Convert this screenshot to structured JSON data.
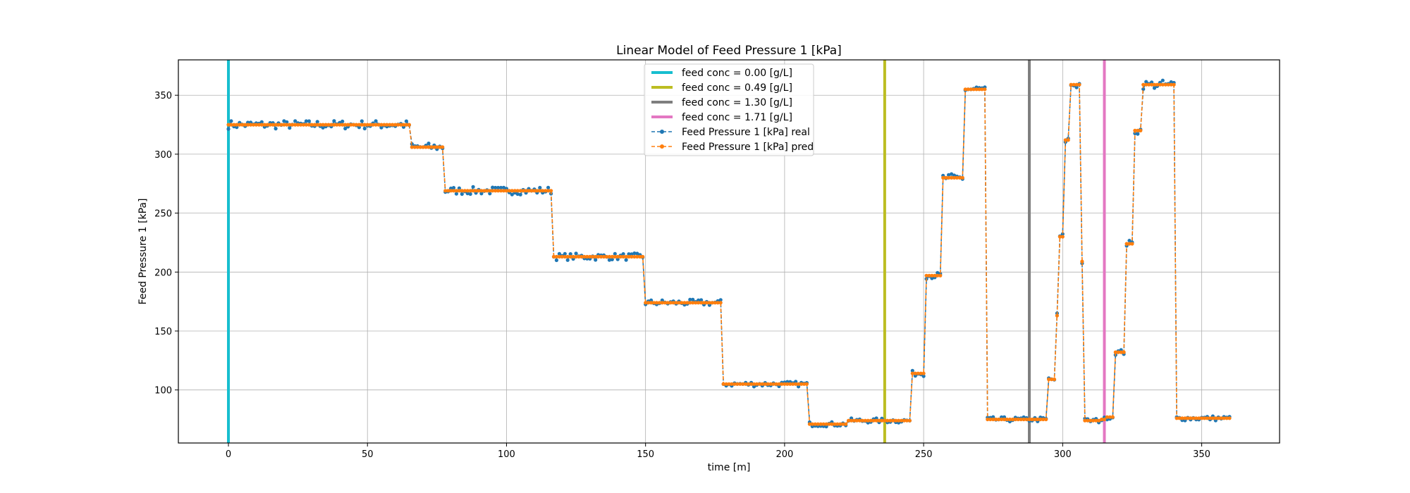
{
  "chart_data": {
    "type": "line",
    "title": "Linear Model of Feed Pressure 1 [kPa]",
    "xlabel": "time [m]",
    "ylabel": "Feed Pressure 1 [kPa]",
    "xlim": [
      -18,
      378
    ],
    "ylim": [
      55,
      380
    ],
    "xticks": [
      0,
      50,
      100,
      150,
      200,
      250,
      300,
      350
    ],
    "yticks": [
      100,
      150,
      200,
      250,
      300,
      350
    ],
    "grid": true,
    "legend_position": "top-center",
    "vlines": [
      {
        "name": "feed conc = 0.00 [g/L]",
        "x": 0,
        "color": "#17becf"
      },
      {
        "name": "feed conc = 0.49 [g/L]",
        "x": 236,
        "color": "#bcbd22"
      },
      {
        "name": "feed conc = 1.30 [g/L]",
        "x": 288,
        "color": "#7f7f7f"
      },
      {
        "name": "feed conc = 1.71 [g/L]",
        "x": 315,
        "color": "#e377c2"
      }
    ],
    "steps": [
      [
        0,
        325
      ],
      [
        65,
        325
      ],
      [
        66,
        306
      ],
      [
        77,
        306
      ],
      [
        78,
        269
      ],
      [
        116,
        269
      ],
      [
        117,
        213
      ],
      [
        149,
        213
      ],
      [
        150,
        174
      ],
      [
        177,
        174
      ],
      [
        178,
        105
      ],
      [
        208,
        105
      ],
      [
        209,
        71
      ],
      [
        222,
        71
      ],
      [
        223,
        74
      ],
      [
        245,
        74
      ],
      [
        246,
        114
      ],
      [
        250,
        114
      ],
      [
        251,
        197
      ],
      [
        256,
        197
      ],
      [
        257,
        280
      ],
      [
        264,
        280
      ],
      [
        265,
        355
      ],
      [
        272,
        355
      ],
      [
        273,
        75
      ],
      [
        294,
        75
      ],
      [
        295,
        109
      ],
      [
        297,
        109
      ],
      [
        298,
        163
      ],
      [
        299,
        230
      ],
      [
        300,
        230
      ],
      [
        301,
        312
      ],
      [
        302,
        312
      ],
      [
        303,
        359
      ],
      [
        306,
        359
      ],
      [
        307,
        209
      ],
      [
        308,
        74
      ],
      [
        313,
        74
      ],
      [
        314,
        75
      ],
      [
        315,
        75
      ],
      [
        316,
        77
      ],
      [
        318,
        77
      ],
      [
        319,
        132
      ],
      [
        322,
        132
      ],
      [
        323,
        224
      ],
      [
        325,
        224
      ],
      [
        326,
        320
      ],
      [
        328,
        320
      ],
      [
        329,
        359
      ],
      [
        340,
        359
      ],
      [
        341,
        76
      ],
      [
        360,
        76
      ]
    ],
    "series": [
      {
        "name": "Feed Pressure 1 [kPa] real",
        "color": "#1f77b4",
        "noise": 1.6
      },
      {
        "name": "Feed Pressure 1 [kPa] pred",
        "color": "#ff7f0e",
        "noise": 0
      }
    ]
  }
}
